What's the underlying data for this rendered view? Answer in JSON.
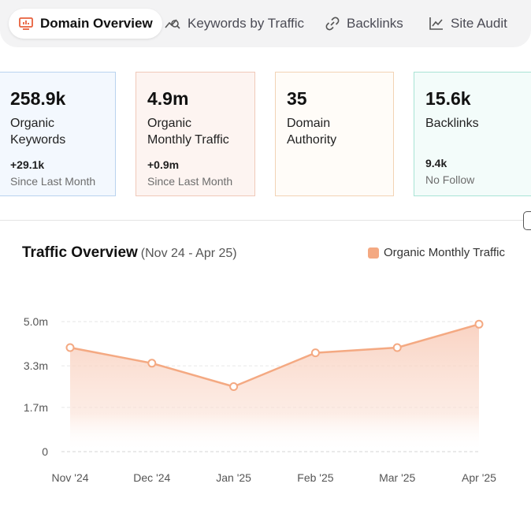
{
  "tabs": [
    {
      "label": "Domain Overview",
      "icon": "monitor-chart-icon",
      "active": true
    },
    {
      "label": "Keywords by Traffic",
      "icon": "trend-search-icon",
      "active": false
    },
    {
      "label": "Backlinks",
      "icon": "link-icon",
      "active": false
    },
    {
      "label": "Site Audit",
      "icon": "line-chart-icon",
      "active": false
    }
  ],
  "cards": {
    "keywords": {
      "value": "258.9k",
      "label_line1": "Organic",
      "label_line2": "Keywords",
      "change": "+29.1k",
      "change_label": "Since Last Month"
    },
    "traffic": {
      "value": "4.9m",
      "label_line1": "Organic",
      "label_line2": "Monthly Traffic",
      "change": "+0.9m",
      "change_label": "Since Last Month"
    },
    "authority": {
      "value": "35",
      "label_line1": "Domain",
      "label_line2": "Authority"
    },
    "backlinks": {
      "value": "15.6k",
      "label_line1": "Backlinks",
      "nofollow": "9.4k",
      "nofollow_label": "No Follow"
    }
  },
  "chart_header": {
    "title": "Traffic Overview",
    "range": "(Nov 24 - Apr 25)",
    "legend": "Organic Monthly Traffic"
  },
  "chart_data": {
    "type": "area",
    "categories": [
      "Nov '24",
      "Dec '24",
      "Jan '25",
      "Feb '25",
      "Mar '25",
      "Apr '25"
    ],
    "series": [
      {
        "name": "Organic Monthly Traffic",
        "values": [
          4.0,
          3.4,
          2.5,
          3.8,
          4.0,
          4.9
        ]
      }
    ],
    "yticks": [
      0,
      1.7,
      3.3,
      5.0
    ],
    "ytick_labels": [
      "0",
      "1.7m",
      "3.3m",
      "5.0m"
    ],
    "ylim": [
      0,
      5.0
    ],
    "grid": true,
    "legend": "top-right",
    "colors": {
      "line": "#f4a982",
      "fill": "#f8cbb8"
    }
  }
}
